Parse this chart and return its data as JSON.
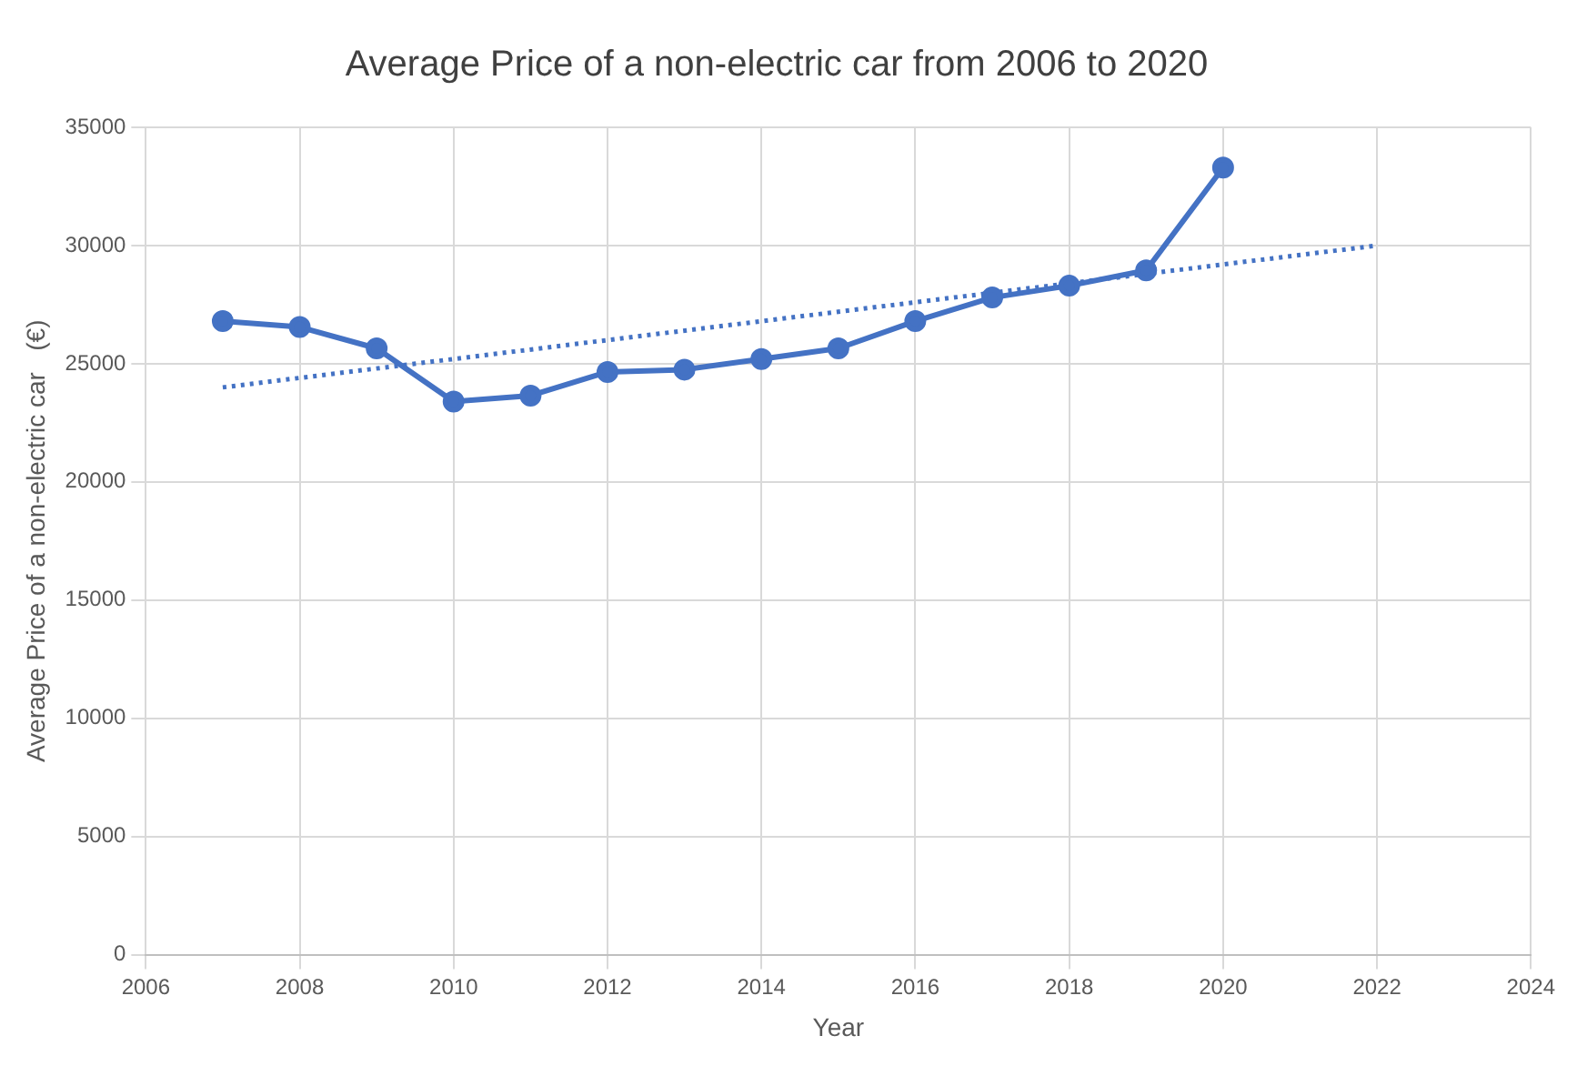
{
  "chart_data": {
    "type": "line",
    "title": "Average Price of a non-electric car from 2006 to 2020",
    "xlabel": "Year",
    "ylabel": "Average Price of a non-electric car   (€)",
    "xlim": [
      2006,
      2024
    ],
    "xticks": [
      2006,
      2008,
      2010,
      2012,
      2014,
      2016,
      2018,
      2020,
      2022,
      2024
    ],
    "ylim": [
      0,
      35000
    ],
    "yticks": [
      0,
      5000,
      10000,
      15000,
      20000,
      25000,
      30000,
      35000
    ],
    "grid": true,
    "legend": false,
    "series": [
      {
        "x": [
          2007,
          2008,
          2009,
          2010,
          2011,
          2012,
          2013,
          2014,
          2015,
          2016,
          2017,
          2018,
          2019,
          2020
        ],
        "values": [
          26800,
          26550,
          25650,
          23400,
          23650,
          24650,
          24750,
          25200,
          25650,
          26800,
          27800,
          28300,
          28950,
          33300
        ],
        "color": "#4472c4",
        "marker": "circle",
        "line_style": "solid"
      },
      {
        "x": [
          2007,
          2022
        ],
        "values": [
          24000,
          30000
        ],
        "color": "#4472c4",
        "marker": "none",
        "line_style": "dotted"
      }
    ]
  }
}
